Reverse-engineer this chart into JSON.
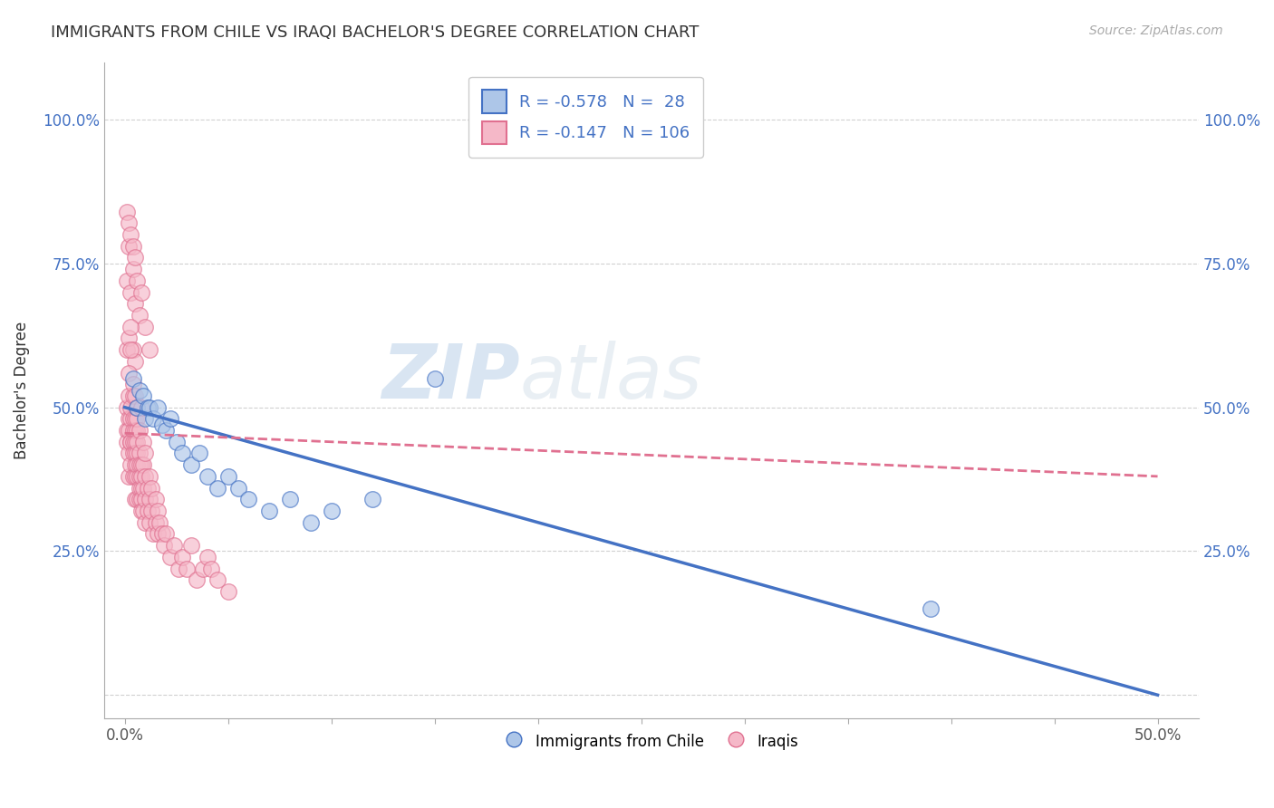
{
  "title": "IMMIGRANTS FROM CHILE VS IRAQI BACHELOR'S DEGREE CORRELATION CHART",
  "source_text": "Source: ZipAtlas.com",
  "ylabel": "Bachelor's Degree",
  "x_ticks": [
    0.0,
    0.05,
    0.1,
    0.15,
    0.2,
    0.25,
    0.3,
    0.35,
    0.4,
    0.45,
    0.5
  ],
  "x_tick_labels_show": [
    "0.0%",
    "",
    "",
    "",
    "",
    "",
    "",
    "",
    "",
    "",
    "50.0%"
  ],
  "y_ticks": [
    0.0,
    0.25,
    0.5,
    0.75,
    1.0
  ],
  "y_tick_labels": [
    "",
    "25.0%",
    "50.0%",
    "75.0%",
    "100.0%"
  ],
  "xlim": [
    -0.01,
    0.52
  ],
  "ylim": [
    -0.04,
    1.1
  ],
  "R_blue": -0.578,
  "N_blue": 28,
  "R_pink": -0.147,
  "N_pink": 106,
  "blue_color": "#adc6e8",
  "pink_color": "#f5b8c8",
  "blue_edge_color": "#4472c4",
  "pink_edge_color": "#e07090",
  "blue_line_color": "#4472c4",
  "pink_line_color": "#e07090",
  "legend_label_blue": "Immigrants from Chile",
  "legend_label_pink": "Iraqis",
  "watermark_zip": "ZIP",
  "watermark_atlas": "atlas",
  "blue_scatter_x": [
    0.004,
    0.006,
    0.007,
    0.009,
    0.01,
    0.011,
    0.012,
    0.014,
    0.016,
    0.018,
    0.02,
    0.022,
    0.025,
    0.028,
    0.032,
    0.036,
    0.04,
    0.045,
    0.05,
    0.055,
    0.06,
    0.07,
    0.08,
    0.09,
    0.1,
    0.12,
    0.15,
    0.39
  ],
  "blue_scatter_y": [
    0.55,
    0.5,
    0.53,
    0.52,
    0.48,
    0.5,
    0.5,
    0.48,
    0.5,
    0.47,
    0.46,
    0.48,
    0.44,
    0.42,
    0.4,
    0.42,
    0.38,
    0.36,
    0.38,
    0.36,
    0.34,
    0.32,
    0.34,
    0.3,
    0.32,
    0.34,
    0.55,
    0.15
  ],
  "pink_scatter_x": [
    0.001,
    0.001,
    0.001,
    0.002,
    0.002,
    0.002,
    0.002,
    0.002,
    0.003,
    0.003,
    0.003,
    0.003,
    0.003,
    0.004,
    0.004,
    0.004,
    0.004,
    0.004,
    0.004,
    0.005,
    0.005,
    0.005,
    0.005,
    0.005,
    0.005,
    0.005,
    0.006,
    0.006,
    0.006,
    0.006,
    0.006,
    0.006,
    0.006,
    0.007,
    0.007,
    0.007,
    0.007,
    0.007,
    0.007,
    0.008,
    0.008,
    0.008,
    0.008,
    0.008,
    0.009,
    0.009,
    0.009,
    0.009,
    0.01,
    0.01,
    0.01,
    0.01,
    0.011,
    0.011,
    0.012,
    0.012,
    0.012,
    0.013,
    0.013,
    0.014,
    0.015,
    0.015,
    0.016,
    0.016,
    0.017,
    0.018,
    0.019,
    0.02,
    0.022,
    0.024,
    0.026,
    0.028,
    0.03,
    0.032,
    0.035,
    0.038,
    0.04,
    0.042,
    0.045,
    0.05,
    0.001,
    0.002,
    0.003,
    0.004,
    0.005,
    0.006,
    0.007,
    0.008,
    0.01,
    0.012,
    0.001,
    0.002,
    0.003,
    0.004,
    0.005,
    0.001,
    0.002,
    0.003,
    0.004,
    0.005,
    0.002,
    0.003,
    0.004,
    0.005,
    0.006,
    0.008
  ],
  "pink_scatter_y": [
    0.46,
    0.5,
    0.44,
    0.48,
    0.42,
    0.46,
    0.38,
    0.52,
    0.44,
    0.48,
    0.4,
    0.44,
    0.5,
    0.46,
    0.42,
    0.38,
    0.44,
    0.48,
    0.52,
    0.46,
    0.4,
    0.44,
    0.38,
    0.42,
    0.48,
    0.34,
    0.46,
    0.38,
    0.42,
    0.34,
    0.48,
    0.4,
    0.44,
    0.38,
    0.34,
    0.42,
    0.46,
    0.36,
    0.4,
    0.36,
    0.4,
    0.34,
    0.38,
    0.32,
    0.36,
    0.4,
    0.32,
    0.44,
    0.38,
    0.34,
    0.42,
    0.3,
    0.36,
    0.32,
    0.38,
    0.3,
    0.34,
    0.32,
    0.36,
    0.28,
    0.34,
    0.3,
    0.32,
    0.28,
    0.3,
    0.28,
    0.26,
    0.28,
    0.24,
    0.26,
    0.22,
    0.24,
    0.22,
    0.26,
    0.2,
    0.22,
    0.24,
    0.22,
    0.2,
    0.18,
    0.72,
    0.78,
    0.7,
    0.74,
    0.68,
    0.72,
    0.66,
    0.7,
    0.64,
    0.6,
    0.84,
    0.82,
    0.8,
    0.78,
    0.76,
    0.6,
    0.62,
    0.64,
    0.6,
    0.58,
    0.56,
    0.6,
    0.54,
    0.52,
    0.5,
    0.5
  ],
  "blue_line_x0": 0.0,
  "blue_line_y0": 0.5,
  "blue_line_x1": 0.5,
  "blue_line_y1": 0.0,
  "pink_line_x0": 0.0,
  "pink_line_y0": 0.455,
  "pink_line_x1": 0.5,
  "pink_line_y1": 0.38
}
